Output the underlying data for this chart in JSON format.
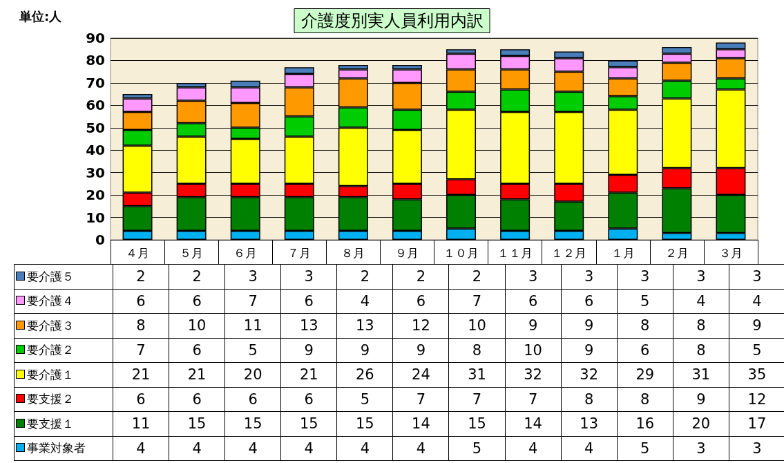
{
  "chart_data": {
    "type": "bar",
    "title": "介護度別実人員利用内訳",
    "ylabel": "単位:人",
    "categories": [
      "４月",
      "５月",
      "６月",
      "７月",
      "８月",
      "９月",
      "１０月",
      "１１月",
      "１２月",
      "１月",
      "２月",
      "３月"
    ],
    "stacked": true,
    "ylim": [
      0,
      90
    ],
    "yticks": [
      0,
      10,
      20,
      30,
      40,
      50,
      60,
      70,
      80,
      90
    ],
    "grid": "y",
    "legend": "bottom",
    "data_labels": true,
    "series": [
      {
        "name": "事業対象者",
        "color": "#00b0f0",
        "values": [
          4,
          4,
          4,
          4,
          4,
          4,
          5,
          4,
          4,
          5,
          3,
          3
        ]
      },
      {
        "name": "要支援１",
        "color": "#008000",
        "values": [
          11,
          15,
          15,
          15,
          15,
          14,
          15,
          14,
          13,
          16,
          20,
          17
        ]
      },
      {
        "name": "要支援２",
        "color": "#ff0000",
        "values": [
          6,
          6,
          6,
          6,
          5,
          7,
          7,
          7,
          8,
          8,
          9,
          12
        ]
      },
      {
        "name": "要介護１",
        "color": "#ffff00",
        "values": [
          21,
          21,
          20,
          21,
          26,
          24,
          31,
          32,
          32,
          29,
          31,
          35
        ]
      },
      {
        "name": "要介護２",
        "color": "#00cc00",
        "values": [
          7,
          6,
          5,
          9,
          9,
          9,
          8,
          10,
          9,
          6,
          8,
          5
        ]
      },
      {
        "name": "要介護３",
        "color": "#ff9900",
        "values": [
          8,
          10,
          11,
          13,
          13,
          12,
          10,
          9,
          9,
          8,
          8,
          9
        ]
      },
      {
        "name": "要介護４",
        "color": "#ff99ff",
        "values": [
          6,
          6,
          7,
          6,
          4,
          6,
          7,
          6,
          6,
          5,
          4,
          4
        ]
      },
      {
        "name": "要介護５",
        "color": "#4a7ebb",
        "values": [
          2,
          2,
          3,
          3,
          2,
          2,
          2,
          3,
          3,
          3,
          3,
          3
        ]
      }
    ]
  }
}
